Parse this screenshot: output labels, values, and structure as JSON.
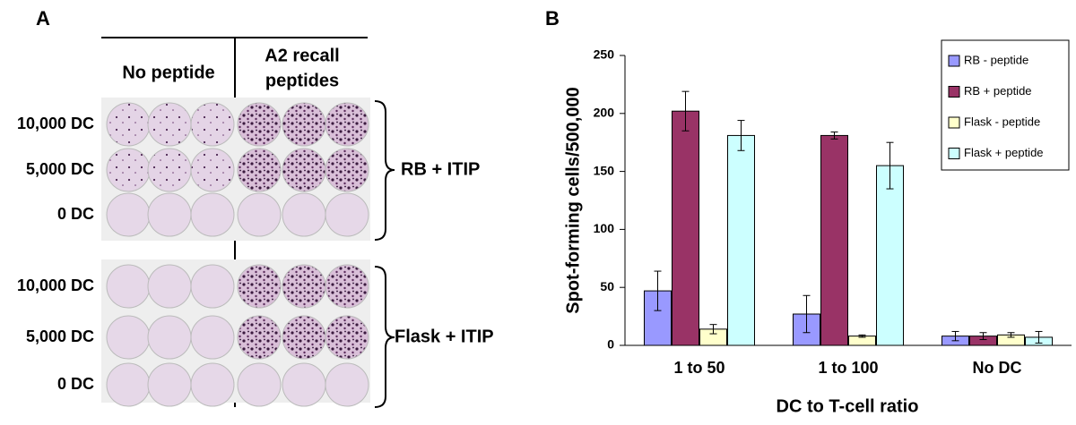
{
  "panel_a": {
    "label": "A",
    "column_headers": {
      "no_peptide": "No peptide",
      "recall": [
        "A2 recall",
        "peptides"
      ]
    },
    "groups": [
      {
        "name": "RB + ITIP",
        "rows": [
          "10,000 DC",
          "5,000 DC",
          "0 DC"
        ]
      },
      {
        "name": "Flask + ITIP",
        "rows": [
          "10,000 DC",
          "5,000 DC",
          "0 DC"
        ]
      }
    ]
  },
  "chart_data": {
    "type": "bar",
    "panel_label": "B",
    "y_label": "Spot-forming cells/500,000",
    "x_label": "DC to T-cell ratio",
    "categories": [
      "1 to 50",
      "1 to 100",
      "No DC"
    ],
    "series": [
      {
        "name": "RB - peptide",
        "color": "#9999ff",
        "values": [
          47,
          27,
          8
        ],
        "errors": [
          17,
          16,
          4
        ]
      },
      {
        "name": "RB + peptide",
        "color": "#993366",
        "values": [
          202,
          181,
          8
        ],
        "errors": [
          17,
          3,
          3
        ]
      },
      {
        "name": "Flask - peptide",
        "color": "#ffffcc",
        "values": [
          14,
          8,
          9
        ],
        "errors": [
          4,
          1,
          2
        ]
      },
      {
        "name": "Flask + peptide",
        "color": "#ccffff",
        "values": [
          181,
          155,
          7
        ],
        "errors": [
          13,
          20,
          5
        ]
      }
    ],
    "ylim": [
      0,
      250
    ],
    "yticks": [
      0,
      50,
      100,
      150,
      200,
      250
    ],
    "legend": "top-right"
  }
}
